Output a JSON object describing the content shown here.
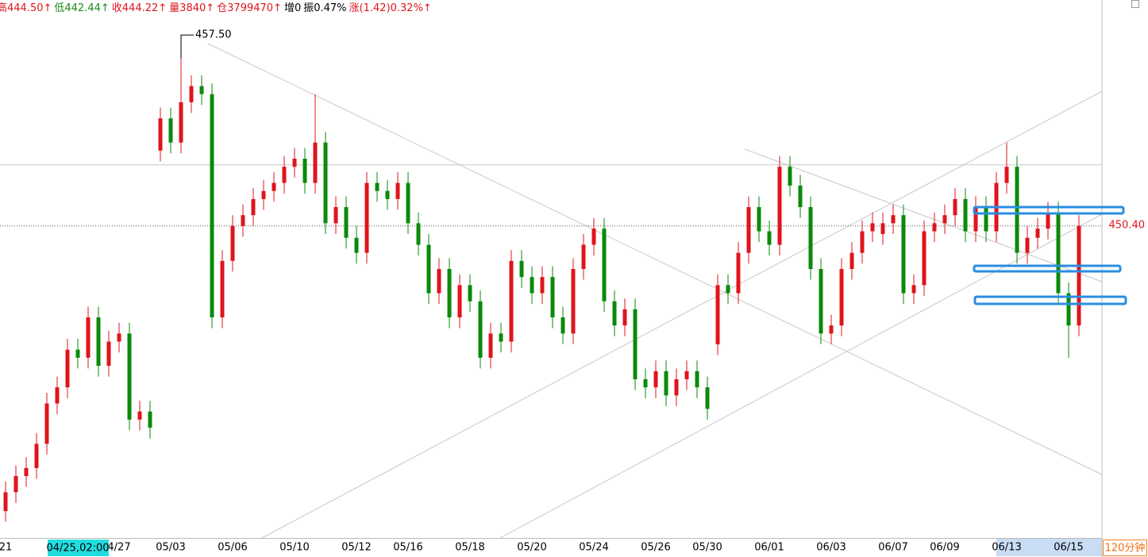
{
  "header": {
    "items": [
      {
        "text": "高444.50↑",
        "color": "#e0141c"
      },
      {
        "text": "低442.44↑",
        "color": "#1a8a1a"
      },
      {
        "text": "收444.22↑",
        "color": "#e0141c"
      },
      {
        "text": "量3840↑",
        "color": "#e0141c"
      },
      {
        "text": "仓3799470↑",
        "color": "#e0141c"
      },
      {
        "text": "增0",
        "color": "#000000"
      },
      {
        "text": "振0.47%",
        "color": "#000000"
      },
      {
        "text": "涨(1.42)0.32%↑",
        "color": "#e0141c"
      }
    ]
  },
  "chart_data": {
    "type": "candlestick",
    "categories": [
      "21",
      null,
      null,
      null,
      null,
      null,
      null,
      null,
      null,
      null,
      null,
      "4/27",
      null,
      null,
      null,
      null,
      "05/03",
      null,
      null,
      null,
      null,
      null,
      "05/06",
      null,
      null,
      null,
      null,
      null,
      "05/10",
      null,
      null,
      null,
      null,
      null,
      "05/12",
      null,
      null,
      null,
      null,
      "05/16",
      null,
      null,
      null,
      null,
      null,
      "05/18",
      null,
      null,
      null,
      null,
      null,
      "05/20",
      null,
      null,
      null,
      null,
      null,
      "05/24",
      null,
      null,
      null,
      null,
      null,
      "05/26",
      null,
      null,
      null,
      null,
      "05/30",
      null,
      null,
      null,
      null,
      null,
      "06/01",
      null,
      null,
      null,
      null,
      null,
      "06/03",
      null,
      null,
      null,
      null,
      null,
      "06/07",
      null,
      null,
      null,
      null,
      "06/09",
      null,
      null,
      null,
      null,
      null,
      "06/13",
      null,
      null,
      null,
      null,
      null,
      "06/15",
      null
    ],
    "open": [
      439.8,
      440.5,
      441.1,
      441.4,
      442.3,
      443.8,
      444.4,
      445.8,
      445.5,
      447.0,
      445.2,
      446.1,
      446.4,
      443.2,
      443.5,
      453.2,
      454.4,
      453.5,
      455.0,
      455.6,
      455.3,
      447.0,
      449.1,
      450.4,
      450.8,
      451.4,
      451.7,
      452.0,
      452.6,
      452.9,
      452.0,
      453.5,
      450.5,
      451.1,
      449.96,
      449.4,
      452.0,
      451.7,
      451.4,
      452.0,
      450.5,
      449.7,
      447.9,
      448.8,
      447.0,
      448.2,
      447.6,
      445.5,
      446.4,
      446.1,
      449.1,
      448.5,
      447.9,
      448.5,
      447.0,
      446.4,
      448.8,
      449.7,
      450.3,
      447.6,
      446.7,
      447.3,
      444.7,
      444.4,
      445.0,
      444.1,
      444.7,
      445.0,
      444.4,
      446.0,
      448.2,
      447.9,
      449.4,
      451.1,
      450.2,
      449.7,
      452.6,
      451.9,
      451.1,
      448.8,
      446.4,
      446.7,
      448.8,
      449.4,
      450.2,
      450.1,
      450.5,
      450.8,
      447.9,
      448.2,
      450.2,
      450.5,
      450.8,
      451.4,
      450.2,
      451.1,
      450.2,
      452.0,
      452.6,
      449.4,
      449.96,
      450.3,
      450.9,
      447.9,
      446.7
    ],
    "high": [
      440.9,
      441.5,
      441.8,
      442.7,
      444.2,
      444.8,
      446.2,
      446.2,
      447.4,
      447.4,
      446.5,
      446.8,
      446.8,
      443.9,
      443.9,
      454.8,
      454.8,
      457.5,
      456.0,
      456.0,
      455.7,
      449.5,
      450.8,
      451.2,
      451.8,
      452.1,
      452.4,
      453.0,
      453.3,
      453.3,
      455.3,
      453.9,
      451.5,
      451.5,
      450.4,
      452.4,
      452.4,
      452.1,
      452.4,
      452.4,
      450.9,
      450.1,
      449.2,
      449.2,
      448.6,
      448.6,
      448.0,
      446.8,
      446.8,
      449.5,
      449.5,
      448.9,
      448.9,
      448.9,
      447.4,
      449.2,
      450.1,
      450.7,
      450.7,
      448.0,
      447.7,
      447.7,
      445.1,
      445.4,
      445.4,
      445.1,
      445.4,
      445.4,
      444.8,
      448.6,
      448.6,
      449.8,
      451.5,
      451.5,
      450.6,
      453.0,
      453.0,
      452.3,
      451.5,
      449.2,
      447.1,
      449.2,
      449.8,
      450.6,
      450.9,
      450.9,
      451.2,
      451.2,
      448.6,
      450.6,
      450.9,
      451.2,
      451.8,
      451.8,
      451.5,
      451.5,
      452.4,
      453.5,
      453.0,
      450.4,
      450.7,
      451.3,
      451.3,
      448.3,
      450.8
    ],
    "low": [
      439.4,
      440.1,
      440.7,
      441.0,
      441.9,
      443.4,
      444.0,
      445.1,
      445.1,
      444.8,
      444.8,
      445.7,
      442.8,
      442.8,
      442.5,
      452.8,
      453.1,
      453.1,
      454.6,
      454.9,
      446.6,
      446.6,
      448.7,
      450.0,
      450.4,
      451.0,
      451.3,
      451.6,
      452.2,
      451.6,
      451.6,
      450.1,
      450.1,
      449.56,
      449.0,
      449.0,
      451.3,
      451.0,
      451.0,
      450.1,
      449.3,
      447.5,
      447.5,
      446.6,
      446.6,
      447.2,
      445.1,
      445.1,
      445.7,
      445.7,
      448.1,
      447.5,
      447.5,
      446.6,
      446.0,
      446.0,
      448.4,
      449.3,
      447.2,
      446.3,
      446.3,
      444.3,
      444.0,
      444.0,
      443.7,
      443.7,
      444.3,
      444.0,
      443.2,
      445.6,
      447.5,
      447.5,
      449.0,
      449.8,
      449.3,
      449.3,
      451.5,
      450.7,
      448.4,
      446.0,
      446.0,
      446.3,
      448.4,
      449.0,
      449.8,
      449.7,
      450.1,
      447.5,
      447.5,
      447.8,
      449.8,
      450.1,
      450.4,
      449.8,
      449.8,
      449.8,
      449.8,
      451.6,
      449.0,
      449.0,
      449.56,
      449.9,
      447.5,
      445.5,
      446.3
    ],
    "close": [
      440.5,
      441.1,
      441.4,
      442.3,
      443.8,
      444.4,
      445.8,
      445.5,
      447.0,
      445.2,
      446.1,
      446.4,
      443.2,
      443.5,
      442.9,
      454.4,
      453.5,
      455.0,
      455.6,
      455.3,
      447.0,
      449.1,
      450.4,
      450.8,
      451.4,
      451.7,
      452.0,
      452.6,
      452.9,
      452.0,
      453.5,
      450.5,
      451.1,
      449.96,
      449.4,
      452.0,
      451.7,
      451.4,
      452.0,
      450.5,
      449.7,
      447.9,
      448.8,
      447.0,
      448.2,
      447.6,
      445.5,
      446.4,
      446.1,
      449.1,
      448.5,
      447.9,
      448.5,
      447.0,
      446.4,
      448.8,
      449.7,
      450.3,
      447.6,
      446.7,
      447.3,
      444.7,
      444.4,
      445.0,
      444.1,
      444.7,
      445.0,
      444.4,
      443.6,
      448.2,
      447.9,
      449.4,
      451.1,
      450.2,
      449.7,
      452.6,
      451.9,
      451.1,
      448.8,
      446.4,
      446.7,
      448.8,
      449.4,
      450.2,
      450.5,
      450.5,
      450.8,
      447.9,
      448.2,
      450.2,
      450.5,
      450.8,
      451.4,
      450.2,
      451.1,
      450.2,
      452.0,
      452.6,
      449.4,
      449.96,
      450.3,
      450.9,
      447.9,
      446.7,
      450.4
    ],
    "up_color": "#e0141c",
    "down_color": "#0a8a0a",
    "ylim": [
      438.8,
      458.8
    ],
    "max_label": {
      "value": 457.5,
      "label": "457.50"
    },
    "last_label": {
      "value": 450.4,
      "label": "450.40"
    },
    "hlines": [
      452.67
    ],
    "crosshair_label": "04/25,02:00",
    "period": "120分钟"
  }
}
